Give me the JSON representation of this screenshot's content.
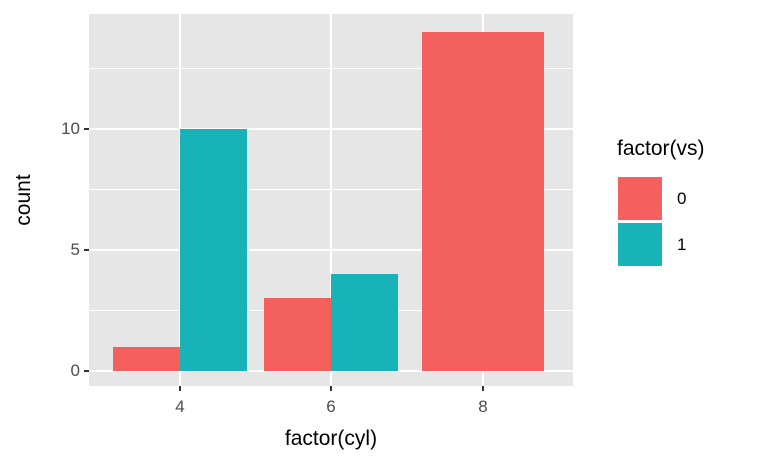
{
  "chart_data": {
    "type": "bar",
    "title": "",
    "xlabel": "factor(cyl)",
    "ylabel": "count",
    "categories": [
      "4",
      "6",
      "8"
    ],
    "series": [
      {
        "name": "0",
        "color": "#F4605E",
        "values": [
          1,
          3,
          14
        ]
      },
      {
        "name": "1",
        "color": "#17B3B9",
        "values": [
          10,
          4,
          null
        ]
      }
    ],
    "legend": {
      "title": "factor(vs)",
      "position": "right",
      "entries": [
        {
          "label": "0",
          "color": "#F4605E"
        },
        {
          "label": "1",
          "color": "#17B3B9"
        }
      ]
    },
    "y_ticks": [
      0,
      5,
      10
    ],
    "y_minor_ticks": [
      2.5,
      7.5,
      12.5
    ],
    "ylim": [
      -0.7,
      14.7
    ],
    "grid": "white major and minor horizontal, white major vertical at categories",
    "panel_background": "#E6E6E6",
    "gridline_color": "#FFFFFF",
    "axis_text_color": "#4D4D4D",
    "bar_layout": "dodged"
  }
}
